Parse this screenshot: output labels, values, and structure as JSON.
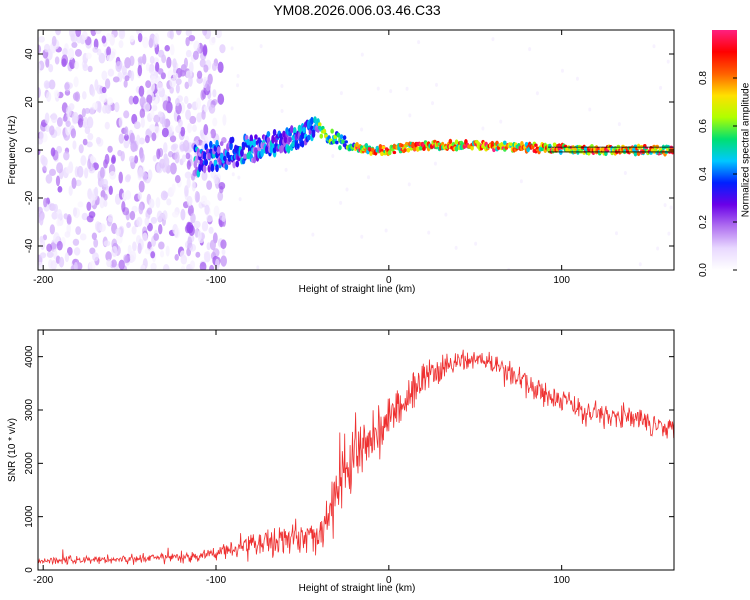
{
  "title": "YM08.2026.006.03.46.C33",
  "chart_data": [
    {
      "type": "heatmap",
      "name": "spectrogram",
      "xlabel": "Height of straight line (km)",
      "ylabel": "Frequency (Hz)",
      "xlim": [
        -203,
        165
      ],
      "ylim": [
        -50,
        50
      ],
      "xticks": [
        -200,
        -100,
        0,
        100
      ],
      "yticks": [
        -40,
        -20,
        0,
        20,
        40
      ],
      "colorbar": {
        "label": "Normalized spectral amplitude",
        "range": [
          0,
          1
        ],
        "ticks": [
          "0.0",
          "0.2",
          "0.4",
          "0.6",
          "0.8"
        ],
        "colormap": [
          "#ffffff",
          "#e8d8ff",
          "#b070f0",
          "#6a00e8",
          "#0020ff",
          "#00c8ff",
          "#00e070",
          "#b0ff00",
          "#ffe000",
          "#ff6000",
          "#ff0000",
          "#ff2080"
        ]
      },
      "ridge": [
        {
          "x": -110,
          "y": -4
        },
        {
          "x": -90,
          "y": -1
        },
        {
          "x": -70,
          "y": 2
        },
        {
          "x": -50,
          "y": 6
        },
        {
          "x": -42,
          "y": 10
        },
        {
          "x": -38,
          "y": 7
        },
        {
          "x": -25,
          "y": 2
        },
        {
          "x": -10,
          "y": 0
        },
        {
          "x": 0,
          "y": 0
        },
        {
          "x": 20,
          "y": 2
        },
        {
          "x": 50,
          "y": 2
        },
        {
          "x": 85,
          "y": 1
        },
        {
          "x": 120,
          "y": 0
        },
        {
          "x": 165,
          "y": 0
        }
      ]
    },
    {
      "type": "line",
      "name": "snr",
      "xlabel": "Height of straight line (km)",
      "ylabel": "SNR (10 * v/v)",
      "xlim": [
        -203,
        165
      ],
      "ylim": [
        0,
        4500
      ],
      "xticks": [
        -200,
        -100,
        0,
        100
      ],
      "yticks": [
        0,
        1000,
        2000,
        3000,
        4000
      ],
      "color": "#ee3030",
      "envelope": [
        {
          "x": -203,
          "mean": 180,
          "amp": 120
        },
        {
          "x": -150,
          "mean": 200,
          "amp": 130
        },
        {
          "x": -110,
          "mean": 250,
          "amp": 150
        },
        {
          "x": -90,
          "mean": 420,
          "amp": 300
        },
        {
          "x": -60,
          "mean": 600,
          "amp": 450
        },
        {
          "x": -40,
          "mean": 650,
          "amp": 500
        },
        {
          "x": -32,
          "mean": 1200,
          "amp": 1000
        },
        {
          "x": -25,
          "mean": 1900,
          "amp": 1000
        },
        {
          "x": -15,
          "mean": 2300,
          "amp": 900
        },
        {
          "x": 0,
          "mean": 2800,
          "amp": 700
        },
        {
          "x": 20,
          "mean": 3600,
          "amp": 450
        },
        {
          "x": 40,
          "mean": 3900,
          "amp": 350
        },
        {
          "x": 55,
          "mean": 3950,
          "amp": 300
        },
        {
          "x": 80,
          "mean": 3500,
          "amp": 400
        },
        {
          "x": 110,
          "mean": 3000,
          "amp": 380
        },
        {
          "x": 140,
          "mean": 2850,
          "amp": 330
        },
        {
          "x": 165,
          "mean": 2650,
          "amp": 300
        }
      ]
    }
  ]
}
